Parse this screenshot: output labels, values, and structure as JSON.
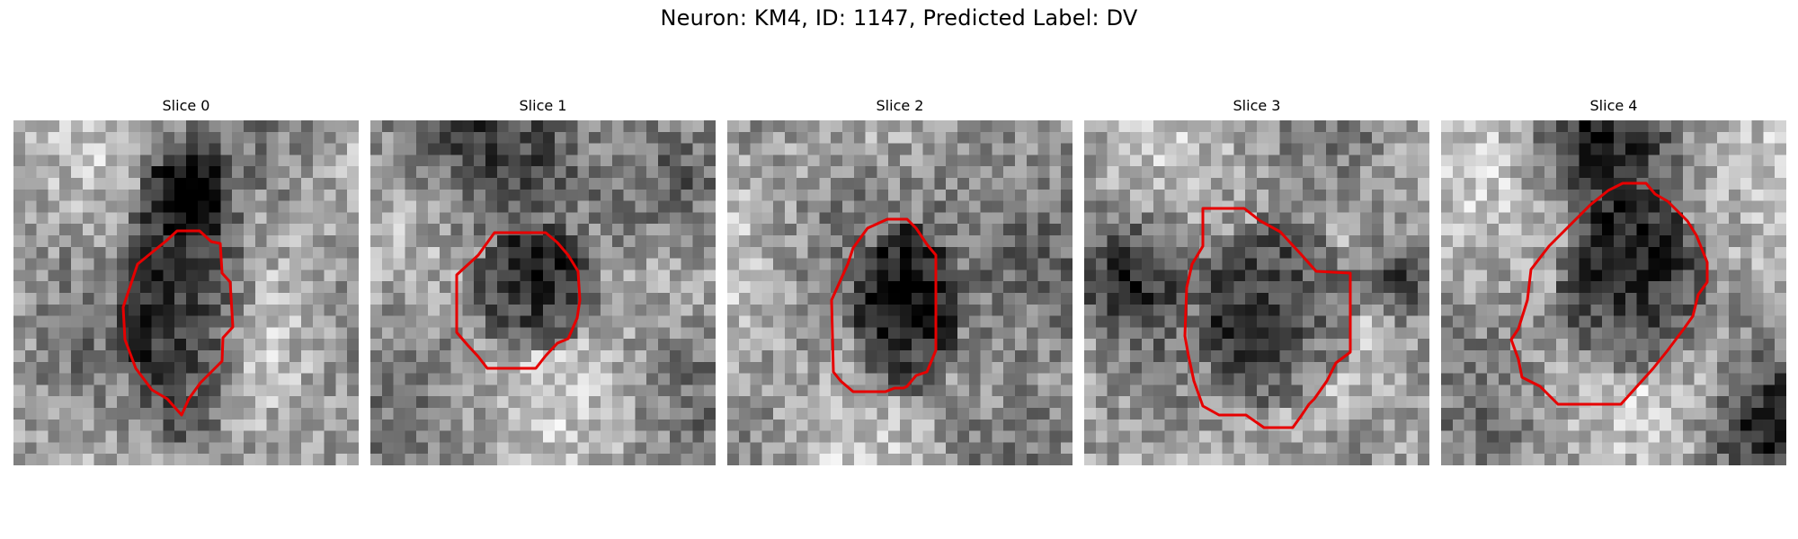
{
  "figure": {
    "title": "Neuron: KM4, ID: 1147, Predicted Label: DV",
    "outline_color": "#e60000"
  },
  "panels": [
    {
      "title": "Slice 0",
      "cell_center": [
        0.49,
        0.52
      ],
      "cell_radius": [
        0.2,
        0.42
      ]
    },
    {
      "title": "Slice 1",
      "cell_center": [
        0.48,
        0.49
      ],
      "cell_radius": [
        0.18,
        0.19
      ]
    },
    {
      "title": "Slice 2",
      "cell_center": [
        0.52,
        0.56
      ],
      "cell_radius": [
        0.16,
        0.26
      ]
    },
    {
      "title": "Slice 3",
      "cell_center": [
        0.56,
        0.55
      ],
      "cell_radius": [
        0.24,
        0.28
      ]
    },
    {
      "title": "Slice 4",
      "cell_center": [
        0.55,
        0.48
      ],
      "cell_radius": [
        0.22,
        0.28
      ]
    }
  ]
}
